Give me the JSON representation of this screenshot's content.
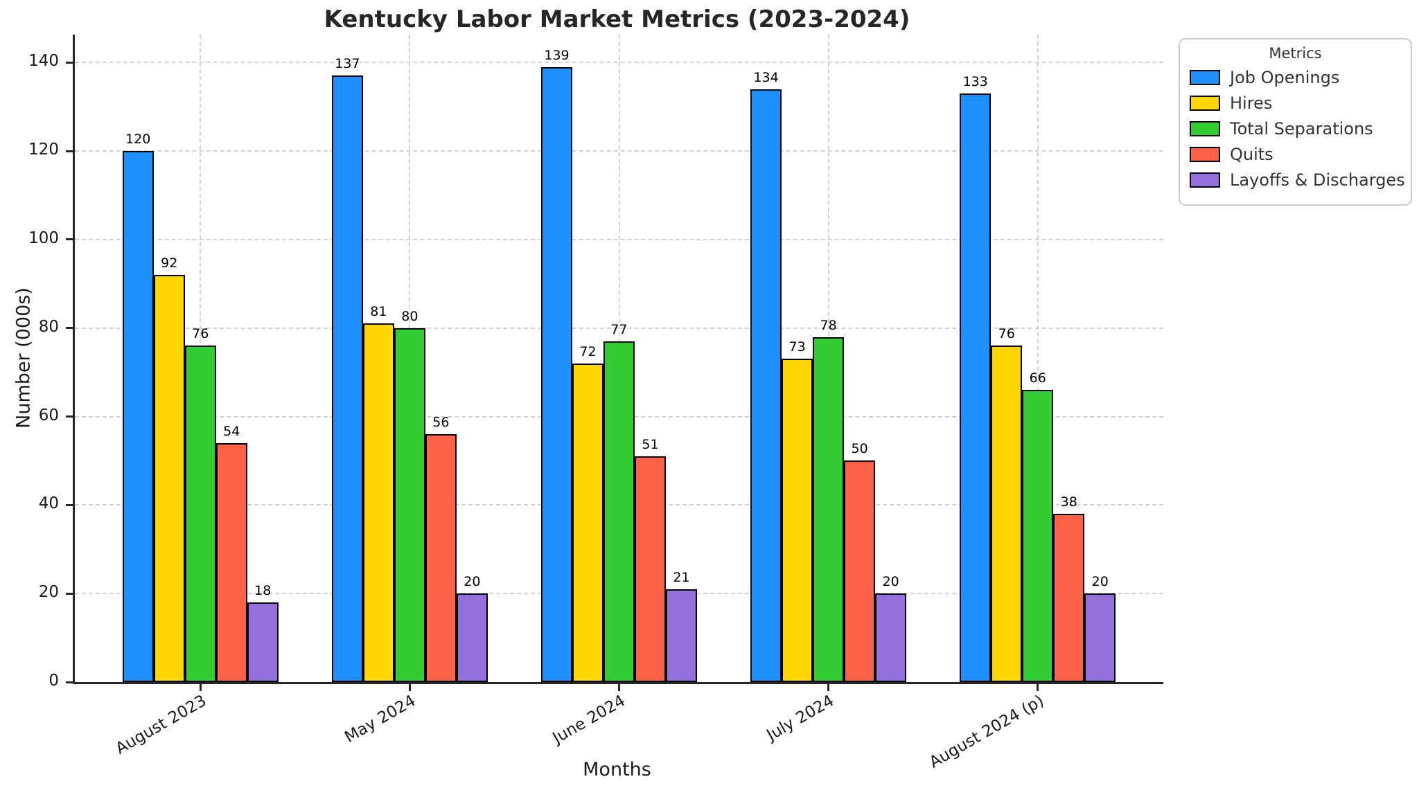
{
  "title": "Kentucky Labor Market Metrics (2023-2024)",
  "chart_data": {
    "type": "bar",
    "title": "Kentucky Labor Market Metrics (2023-2024)",
    "xlabel": "Months",
    "ylabel": "Number (000s)",
    "categories": [
      "August 2023",
      "May 2024",
      "June 2024",
      "July 2024",
      "August 2024 (p)"
    ],
    "series": [
      {
        "name": "Job Openings",
        "color": "#1E90FF",
        "values": [
          120,
          137,
          139,
          134,
          133
        ]
      },
      {
        "name": "Hires",
        "color": "#FFD700",
        "values": [
          92,
          81,
          72,
          73,
          76
        ]
      },
      {
        "name": "Total Separations",
        "color": "#32CD32",
        "values": [
          76,
          80,
          77,
          78,
          66
        ]
      },
      {
        "name": "Quits",
        "color": "#FF6347",
        "values": [
          54,
          56,
          51,
          50,
          38
        ]
      },
      {
        "name": "Layoffs & Discharges",
        "color": "#9370DB",
        "values": [
          18,
          20,
          21,
          20,
          20
        ]
      }
    ],
    "legend": {
      "title": "Metrics",
      "position": "outside upper right"
    },
    "yticks": [
      0,
      20,
      40,
      60,
      80,
      100,
      120,
      140
    ],
    "ylim": [
      0,
      146.3
    ],
    "grid": true,
    "grid_style": "dashed",
    "bar_edge_color": "#000000",
    "bar_labels": true
  }
}
